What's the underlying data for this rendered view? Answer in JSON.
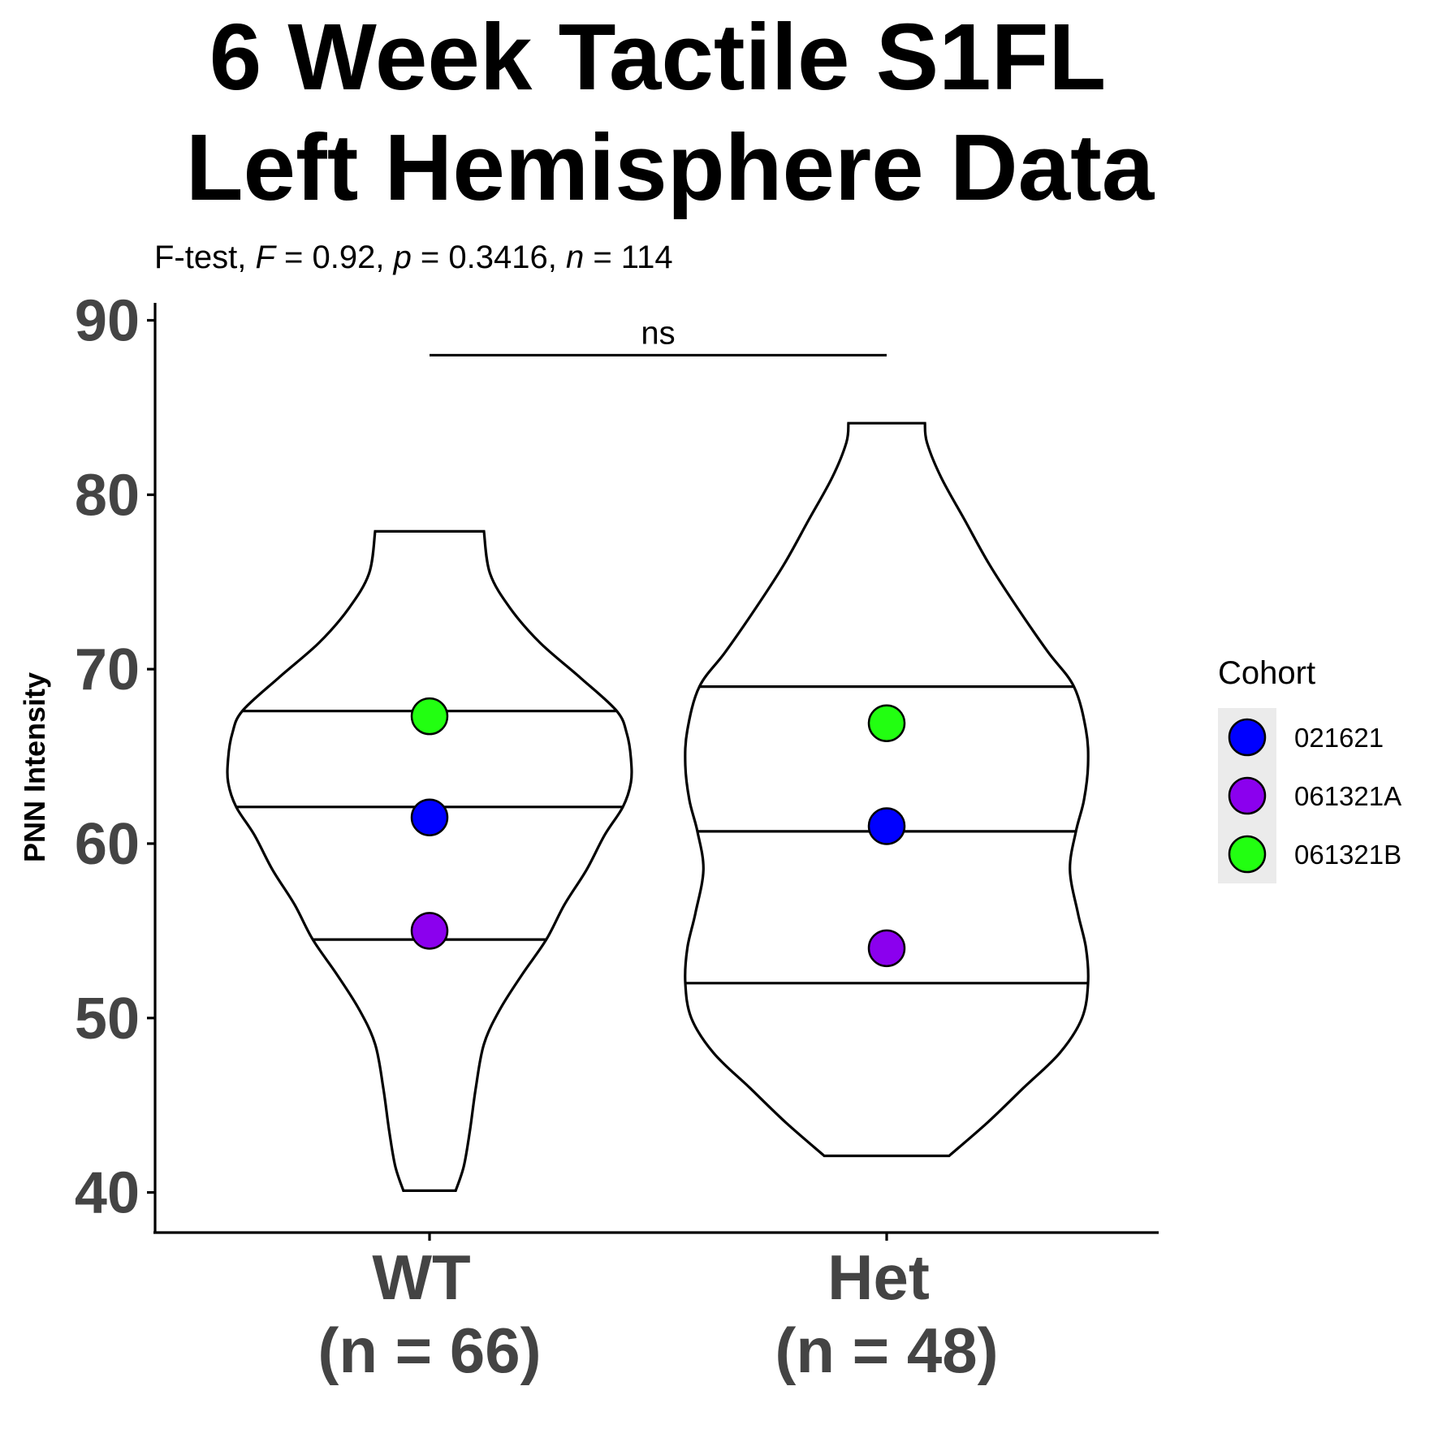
{
  "chart_data": {
    "type": "violin",
    "title_lines": [
      "6 Week Tactile S1FL",
      "Left Hemisphere Data"
    ],
    "subtitle": {
      "test": "F-test, ",
      "stat_symbol": "F",
      "stat_value": " = 0.92, ",
      "p_symbol": "p",
      "p_value": " = 0.3416, ",
      "n_symbol": "n",
      "n_value": " = 114"
    },
    "ylabel": "PNN Intensity",
    "ylim": [
      37.7,
      91.0
    ],
    "yticks": [
      40,
      50,
      60,
      70,
      80,
      90
    ],
    "categories": [
      {
        "label_line1": "WT",
        "label_line2": "(n = 66)",
        "min": 40.1,
        "max": 77.9,
        "quantiles": [
          54.5,
          62.1,
          67.6
        ],
        "profile": [
          [
            40.1,
            0.13
          ],
          [
            41.5,
            0.17
          ],
          [
            43.5,
            0.2
          ],
          [
            46.0,
            0.23
          ],
          [
            48.5,
            0.27
          ],
          [
            50.5,
            0.35
          ],
          [
            52.5,
            0.46
          ],
          [
            54.5,
            0.58
          ],
          [
            56.5,
            0.67
          ],
          [
            58.5,
            0.78
          ],
          [
            60.5,
            0.87
          ],
          [
            62.1,
            0.96
          ],
          [
            63.5,
            1.0
          ],
          [
            64.9,
            1.0
          ],
          [
            66.3,
            0.98
          ],
          [
            67.6,
            0.93
          ],
          [
            69.5,
            0.75
          ],
          [
            71.5,
            0.55
          ],
          [
            73.5,
            0.4
          ],
          [
            75.5,
            0.3
          ],
          [
            77.9,
            0.27
          ]
        ],
        "points": [
          {
            "cohort": "021621",
            "value": 61.5
          },
          {
            "cohort": "061321A",
            "value": 55.0
          },
          {
            "cohort": "061321B",
            "value": 67.3
          }
        ]
      },
      {
        "label_line1": "Het",
        "label_line2": "(n = 48)",
        "min": 42.1,
        "max": 84.1,
        "quantiles": [
          52.0,
          60.7,
          69.0
        ],
        "profile": [
          [
            42.1,
            0.31
          ],
          [
            44.0,
            0.5
          ],
          [
            46.0,
            0.68
          ],
          [
            48.0,
            0.86
          ],
          [
            50.0,
            0.97
          ],
          [
            52.0,
            1.0
          ],
          [
            54.0,
            0.99
          ],
          [
            56.0,
            0.95
          ],
          [
            58.5,
            0.91
          ],
          [
            60.7,
            0.94
          ],
          [
            62.5,
            0.98
          ],
          [
            64.5,
            1.0
          ],
          [
            66.5,
            0.99
          ],
          [
            69.0,
            0.93
          ],
          [
            71.0,
            0.8
          ],
          [
            73.5,
            0.65
          ],
          [
            76.0,
            0.51
          ],
          [
            78.5,
            0.39
          ],
          [
            81.0,
            0.27
          ],
          [
            83.0,
            0.2
          ],
          [
            84.1,
            0.19
          ]
        ],
        "points": [
          {
            "cohort": "021621",
            "value": 61.0
          },
          {
            "cohort": "061321A",
            "value": 54.0
          },
          {
            "cohort": "061321B",
            "value": 66.9
          }
        ]
      }
    ],
    "significance": {
      "label": "ns",
      "y": 88.0
    },
    "legend": {
      "title": "Cohort",
      "placement": "right",
      "entries": [
        {
          "label": "021621",
          "color": "#0000ff"
        },
        {
          "label": "061321A",
          "color": "#8b00ee"
        },
        {
          "label": "061321B",
          "color": "#22ff11"
        }
      ]
    },
    "grid": false
  }
}
